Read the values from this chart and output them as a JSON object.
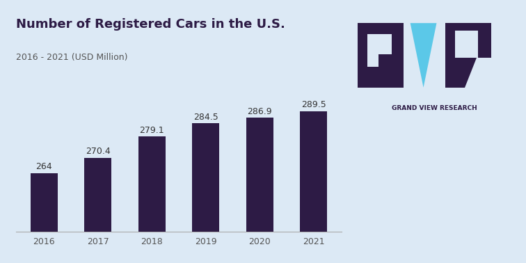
{
  "title": "Number of Registered Cars in the U.S.",
  "subtitle": "2016 - 2021 (USD Million)",
  "categories": [
    "2016",
    "2017",
    "2018",
    "2019",
    "2020",
    "2021"
  ],
  "values": [
    264,
    270.4,
    279.1,
    284.5,
    286.9,
    289.5
  ],
  "bar_color": "#2d1b45",
  "background_color": "#dce9f5",
  "top_border_color": "#5bc8e8",
  "title_color": "#2d1b45",
  "subtitle_color": "#555555",
  "label_color": "#333333",
  "tick_color": "#555555",
  "logo_dark": "#2d1b45",
  "logo_cyan": "#5bc8e8",
  "gvr_text_color": "#2d1b45",
  "title_fontsize": 13,
  "subtitle_fontsize": 9,
  "label_fontsize": 9,
  "tick_fontsize": 9,
  "ylim_min": 240,
  "ylim_max": 305
}
